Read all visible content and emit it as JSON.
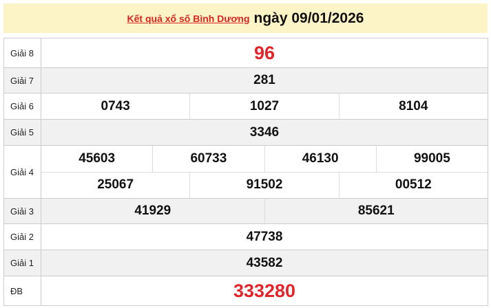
{
  "header": {
    "link": "Kết quả xổ số Bình Dương",
    "date": "ngày 09/01/2026"
  },
  "colors": {
    "header_bg": "#fcf3c6",
    "accent_red": "#e0262c",
    "row_gray": "#f1f1f1"
  },
  "prizes": [
    {
      "label": "Giải 8",
      "rows": [
        [
          "96"
        ]
      ]
    },
    {
      "label": "Giải 7",
      "rows": [
        [
          "281"
        ]
      ]
    },
    {
      "label": "Giải 6",
      "rows": [
        [
          "0743",
          "1027",
          "8104"
        ]
      ]
    },
    {
      "label": "Giải 5",
      "rows": [
        [
          "3346"
        ]
      ]
    },
    {
      "label": "Giải 4",
      "rows": [
        [
          "45603",
          "60733",
          "46130",
          "99005"
        ],
        [
          "25067",
          "91502",
          "00512"
        ]
      ]
    },
    {
      "label": "Giải 3",
      "rows": [
        [
          "41929",
          "85621"
        ]
      ]
    },
    {
      "label": "Giải 2",
      "rows": [
        [
          "47738"
        ]
      ]
    },
    {
      "label": "Giải 1",
      "rows": [
        [
          "43582"
        ]
      ]
    },
    {
      "label": "ĐB",
      "rows": [
        [
          "333280"
        ]
      ]
    }
  ]
}
